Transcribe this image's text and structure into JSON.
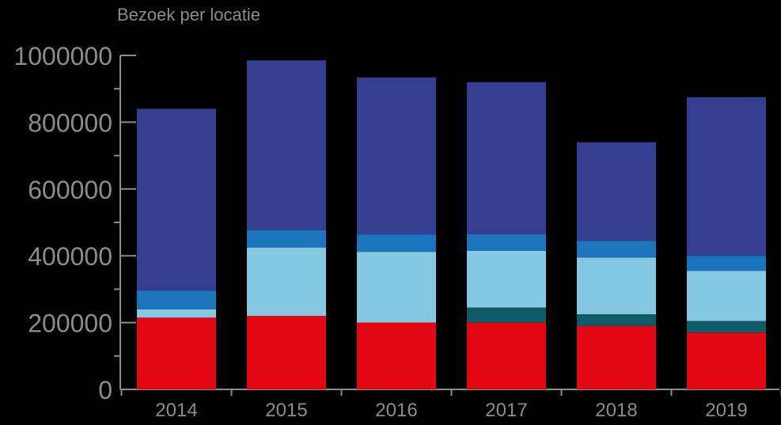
{
  "chart_data": {
    "type": "bar",
    "stacked": true,
    "title": "Bezoek per locatie",
    "xlabel": "",
    "ylabel": "",
    "ylim": [
      0,
      1000000
    ],
    "yticks": [
      "0",
      "200000",
      "400000",
      "600000",
      "800000",
      "1000000"
    ],
    "grid": false,
    "legend": "none",
    "categories": [
      "2014",
      "2015",
      "2016",
      "2017",
      "2018",
      "2019"
    ],
    "series": [
      {
        "color": "#e30613",
        "values": [
          215000,
          220000,
          200000,
          200000,
          190000,
          170000
        ]
      },
      {
        "color": "#0e5a66",
        "values": [
          0,
          0,
          0,
          45000,
          35000,
          35000
        ]
      },
      {
        "color": "#86c8e1",
        "values": [
          25000,
          205000,
          212000,
          170000,
          170000,
          150000
        ]
      },
      {
        "color": "#1a75bc",
        "values": [
          55000,
          52000,
          52000,
          50000,
          50000,
          45000
        ]
      },
      {
        "color": "#353f92",
        "values": [
          545000,
          508000,
          470000,
          455000,
          295000,
          475000
        ]
      }
    ],
    "colors": {
      "background": "#000000",
      "text": "#8c8c8c",
      "axis": "#8c8c8c"
    }
  }
}
